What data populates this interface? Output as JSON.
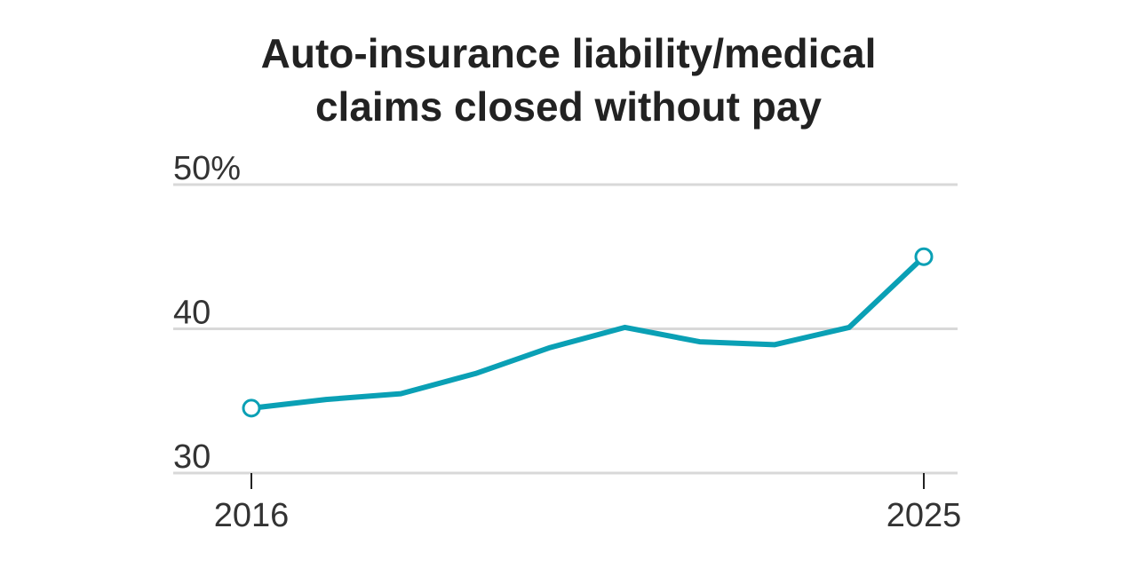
{
  "chart_data": {
    "type": "line",
    "title_lines": [
      "Auto-insurance liability/medical",
      "claims closed without pay"
    ],
    "xlabel": "",
    "ylabel": "",
    "x": [
      2016,
      2017,
      2018,
      2019,
      2020,
      2021,
      2022,
      2023,
      2024,
      2025
    ],
    "series": [
      {
        "values": [
          34.5,
          35.1,
          35.5,
          36.9,
          38.7,
          40.1,
          39.1,
          38.9,
          40.1,
          45.0
        ]
      }
    ],
    "ylim": [
      30,
      50
    ],
    "xlim": [
      2016,
      2025
    ],
    "y_ticks": [
      30,
      40,
      50
    ],
    "y_tick_labels": [
      "30",
      "40",
      "50%"
    ],
    "x_ticks": [
      2016,
      2025
    ],
    "x_tick_labels": [
      "2016",
      "2025"
    ],
    "endpoint_markers": true,
    "grid": true,
    "colors": {
      "line": "#0aa0b5",
      "grid": "#d8d8d8",
      "axis": "#222222",
      "text": "#333333",
      "title": "#222222"
    }
  }
}
